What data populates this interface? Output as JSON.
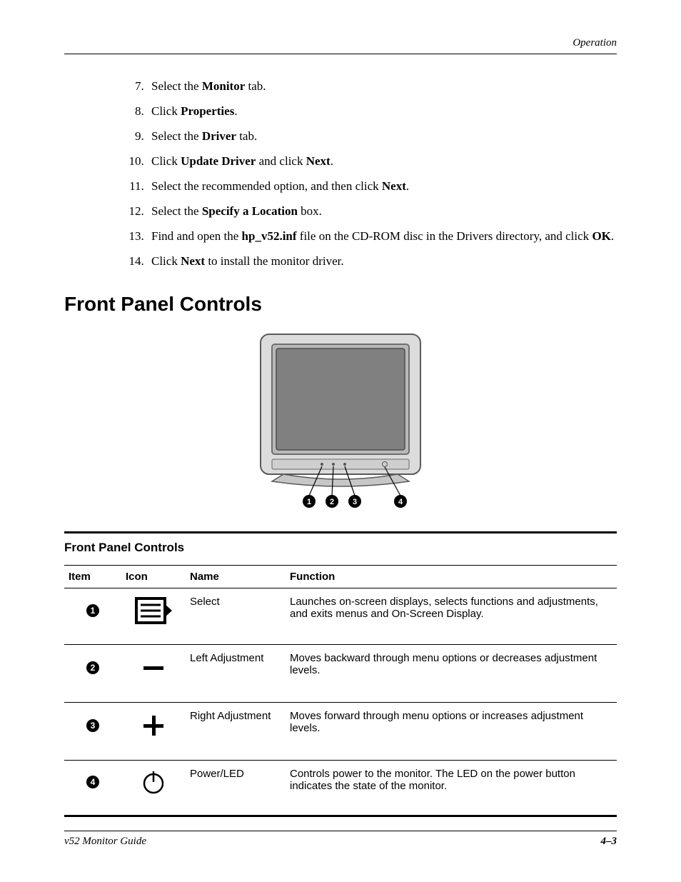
{
  "header": {
    "section": "Operation"
  },
  "steps": [
    {
      "n": 7,
      "pre": "Select the ",
      "bold": "Monitor",
      "post": " tab."
    },
    {
      "n": 8,
      "pre": "Click ",
      "bold": "Properties",
      "post": "."
    },
    {
      "n": 9,
      "pre": "Select the ",
      "bold": "Driver",
      "post": " tab."
    },
    {
      "n": 10,
      "pre": "Click ",
      "bold": "Update Driver",
      "post": " and click ",
      "bold2": "Next",
      "post2": "."
    },
    {
      "n": 11,
      "pre": "Select the recommended option, and then click ",
      "bold": "Next",
      "post": "."
    },
    {
      "n": 12,
      "pre": "Select the ",
      "bold": "Specify a Location",
      "post": " box."
    },
    {
      "n": 13,
      "pre": "Find and open the ",
      "bold": "hp_v52.inf",
      "post": " file on the CD-ROM disc in the Drivers directory, and click ",
      "bold2": "OK",
      "post2": "."
    },
    {
      "n": 14,
      "pre": "Click ",
      "bold": "Next",
      "post": " to install the monitor driver."
    }
  ],
  "section_heading": "Front Panel Controls",
  "monitor": {
    "bezel_fill": "#dcdcdc",
    "bezel_stroke": "#6f6f6f",
    "screen_fill": "#808080",
    "screen_border": "#565656",
    "base_fill": "#c7c7c7",
    "callouts": [
      "1",
      "2",
      "3",
      "4"
    ]
  },
  "table": {
    "title": "Front Panel Controls",
    "columns": [
      "Item",
      "Icon",
      "Name",
      "Function"
    ],
    "rows": [
      {
        "num": "1",
        "icon": "select",
        "name": "Select",
        "func": "Launches on-screen displays, selects functions and adjustments, and exits menus and On-Screen Display."
      },
      {
        "num": "2",
        "icon": "minus",
        "name": "Left Adjustment",
        "func": "Moves backward through menu options or decreases adjustment levels."
      },
      {
        "num": "3",
        "icon": "plus",
        "name": "Right Adjustment",
        "func": "Moves forward through menu options or increases adjustment levels."
      },
      {
        "num": "4",
        "icon": "power",
        "name": "Power/LED",
        "func": "Controls power to the monitor. The LED on the power button indicates the state of the monitor."
      }
    ]
  },
  "footer": {
    "left": "v52 Monitor Guide",
    "right": "4–3"
  }
}
